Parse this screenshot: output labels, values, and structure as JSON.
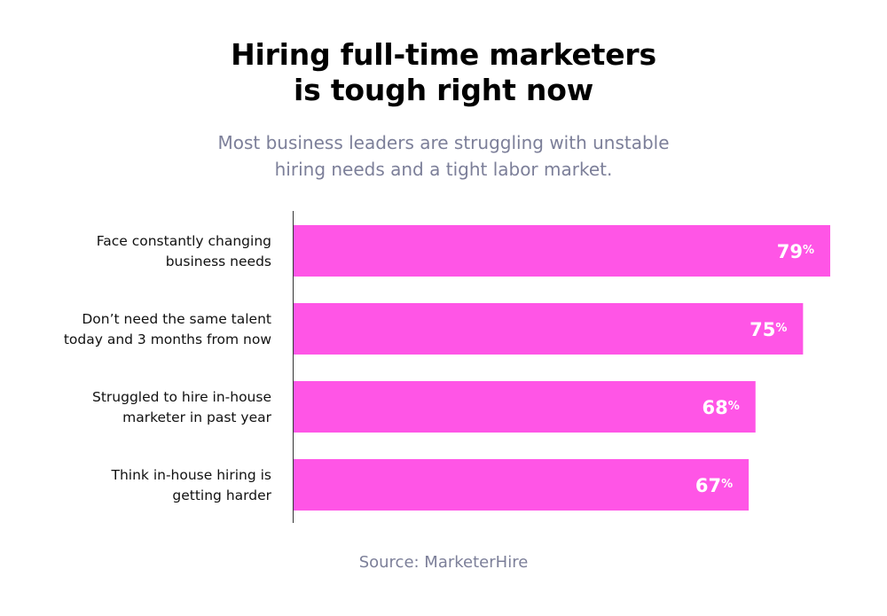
{
  "title_lines": [
    "Hiring full-time marketers",
    "is tough right now"
  ],
  "subtitle_lines": [
    "Most business leaders are struggling with unstable",
    "hiring needs and a tight labor market."
  ],
  "source": "Source: MarketerHire",
  "colors": {
    "bar": "#ff55e6",
    "title": "#000000",
    "subtitle": "#7c7f99",
    "axis": "#333333",
    "bar_label": "#ffffff"
  },
  "chart_data": {
    "type": "bar",
    "orientation": "horizontal",
    "categories": [
      [
        "Face constantly changing",
        "business needs"
      ],
      [
        "Don’t need the same talent",
        "today and 3 months from now"
      ],
      [
        "Struggled to hire in-house",
        "marketer in past year"
      ],
      [
        "Think in-house hiring is",
        "getting harder"
      ]
    ],
    "values": [
      79,
      75,
      68,
      67
    ],
    "value_labels": [
      "79%",
      "75%",
      "68%",
      "67%"
    ],
    "unit": "%",
    "xlim": [
      0,
      79
    ],
    "grid": false,
    "legend": "none"
  }
}
